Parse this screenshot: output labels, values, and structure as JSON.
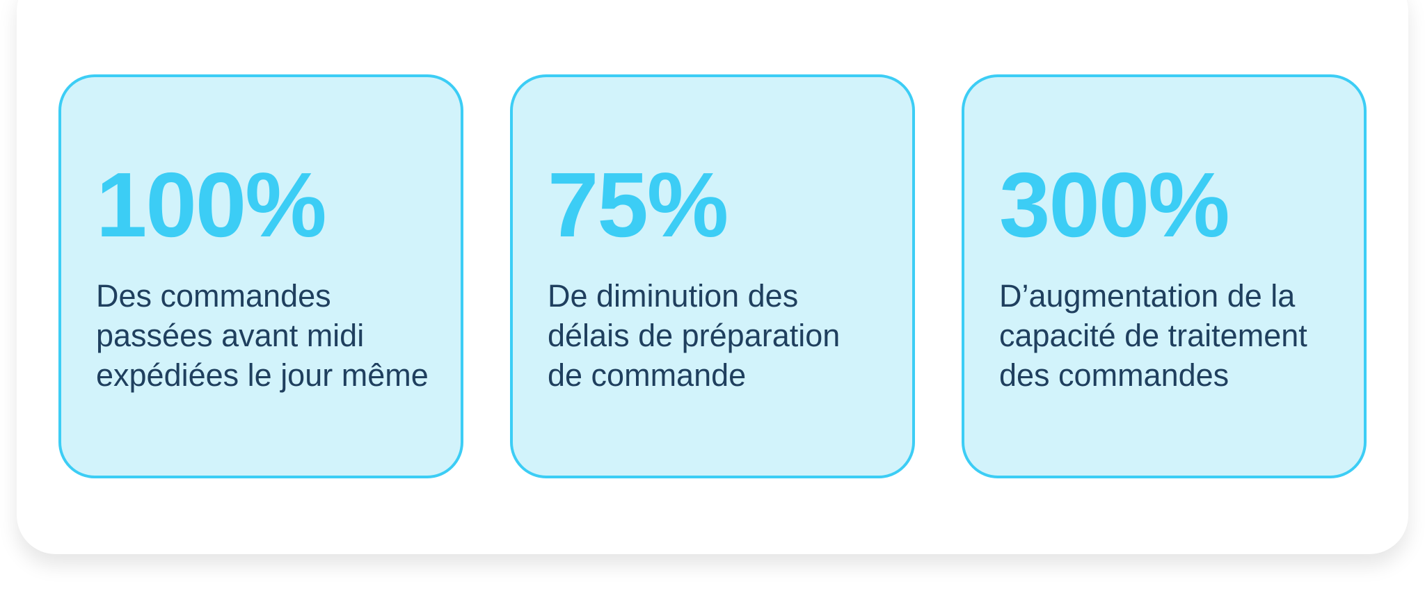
{
  "cards": [
    {
      "stat": "100%",
      "lines": [
        "Des commandes",
        "passées avant midi",
        "expédiées le jour même"
      ]
    },
    {
      "stat": "75%",
      "lines": [
        "De diminution des",
        "délais de préparation",
        "de commande"
      ]
    },
    {
      "stat": "300%",
      "lines": [
        "D’augmentation de la",
        "capacité de traitement",
        "des commandes"
      ]
    }
  ]
}
